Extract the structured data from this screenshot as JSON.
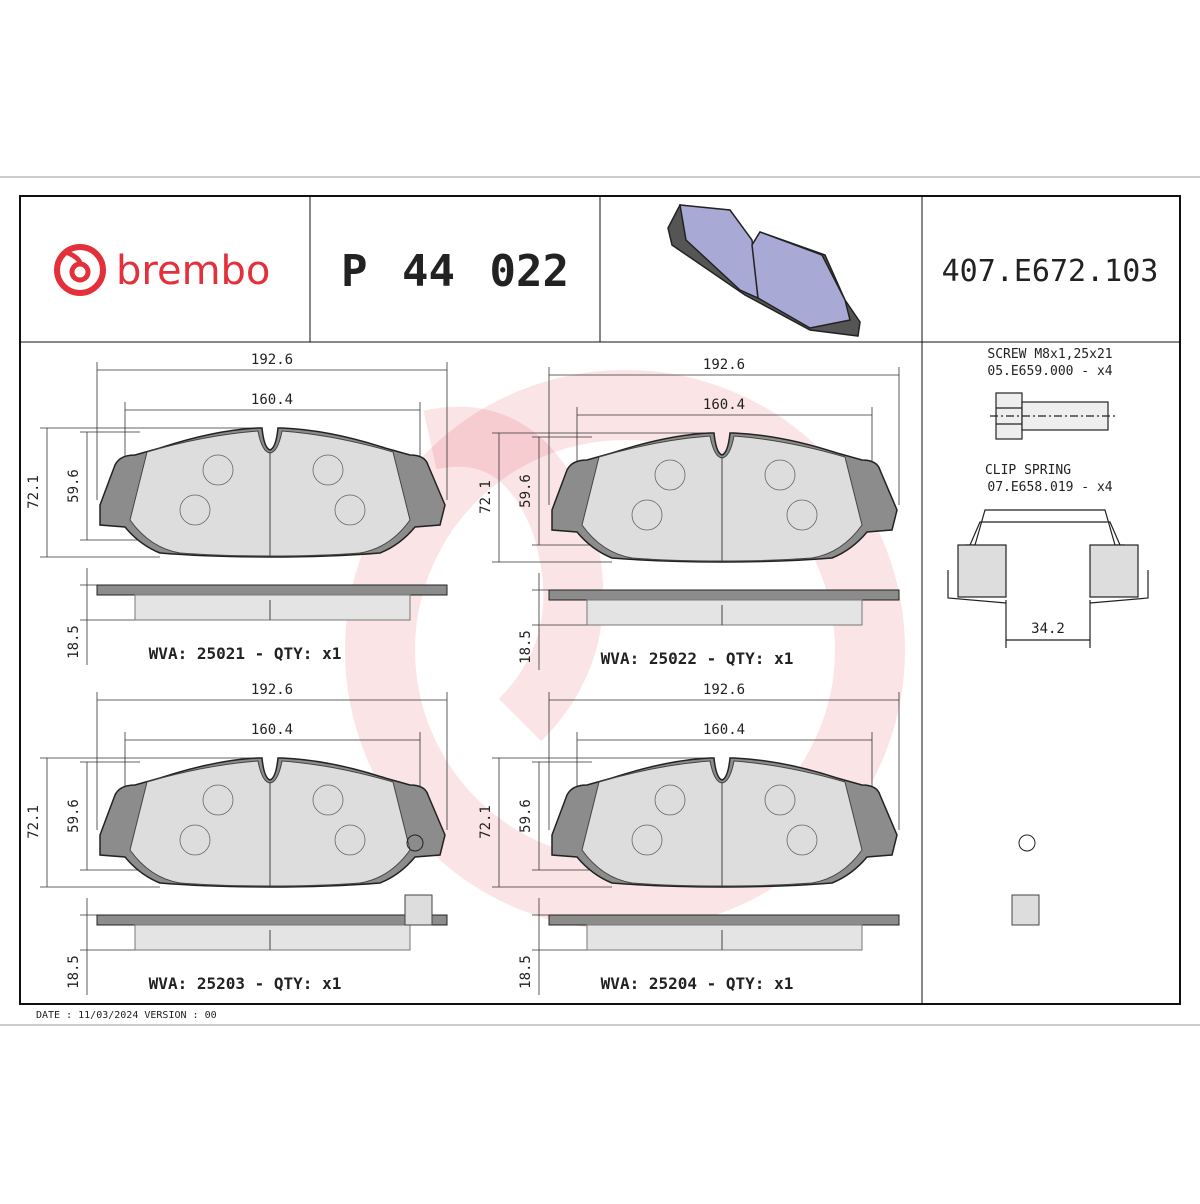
{
  "header": {
    "brand": "brembo",
    "part_number": "P 44 022",
    "drawing_code": "407.E672.103"
  },
  "pads": [
    {
      "width_total": "192.6",
      "width_inner": "160.4",
      "height_total": "72.1",
      "height_inner": "59.6",
      "thickness": "18.5",
      "label": "WVA: 25021 - QTY: x1"
    },
    {
      "width_total": "192.6",
      "width_inner": "160.4",
      "height_total": "72.1",
      "height_inner": "59.6",
      "thickness": "18.5",
      "label": "WVA: 25022 - QTY: x1"
    },
    {
      "width_total": "192.6",
      "width_inner": "160.4",
      "height_total": "72.1",
      "height_inner": "59.6",
      "thickness": "18.5",
      "label": "WVA: 25203 - QTY: x1"
    },
    {
      "width_total": "192.6",
      "width_inner": "160.4",
      "height_total": "72.1",
      "height_inner": "59.6",
      "thickness": "18.5",
      "label": "WVA: 25204 - QTY: x1"
    }
  ],
  "accessories": {
    "screw_name": "SCREW M8x1,25x21",
    "screw_code": "05.E659.000 - x4",
    "clip_name": "CLIP SPRING",
    "clip_code": "07.E658.019 - x4",
    "clip_dim": "34.2"
  },
  "footer": "DATE : 11/03/2024 VERSION : 00"
}
